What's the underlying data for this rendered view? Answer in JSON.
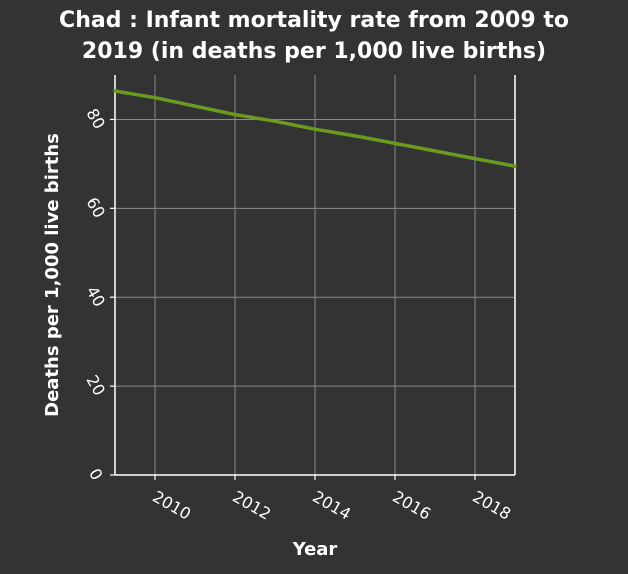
{
  "chart_data": {
    "type": "line",
    "title_lines": [
      "Chad : Infant mortality rate from 2009 to",
      "2019 (in deaths per 1,000 live births)"
    ],
    "xlabel": "Year",
    "ylabel": "Deaths per 1,000 live births",
    "xlim": [
      2009,
      2019
    ],
    "ylim": [
      0,
      90
    ],
    "xticks": [
      2010,
      2012,
      2014,
      2016,
      2018
    ],
    "yticks": [
      0,
      20,
      40,
      60,
      80
    ],
    "grid": true,
    "series": [
      {
        "name": "Infant mortality rate",
        "color": "#6a9a1f",
        "x": [
          2009,
          2010,
          2011,
          2012,
          2013,
          2014,
          2015,
          2016,
          2017,
          2018,
          2019
        ],
        "values": [
          86.4,
          84.9,
          83.0,
          81.1,
          79.6,
          77.8,
          76.3,
          74.6,
          72.9,
          71.2,
          69.5
        ]
      }
    ]
  },
  "colors": {
    "background": "#333333",
    "grid": "#8a8a8a",
    "axis": "#ffffff",
    "text": "#ffffff"
  }
}
